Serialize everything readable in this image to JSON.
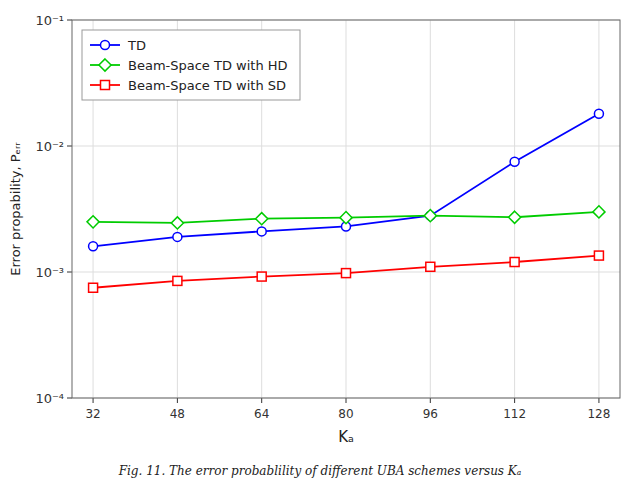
{
  "chart_data": {
    "type": "line",
    "xlabel": "Kₐ",
    "ylabel": "Error propability, Pₑᵣᵣ",
    "annotations": [
      "Fig. 11.  The error probablility of different UBA schemes versus Kₐ"
    ],
    "x": [
      32,
      48,
      64,
      80,
      96,
      112,
      128
    ],
    "series": [
      {
        "name": "TD",
        "color": "#0000FF",
        "marker": "circle",
        "values": [
          0.0016,
          0.0019,
          0.0021,
          0.0023,
          0.0028,
          0.0075,
          0.018
        ]
      },
      {
        "name": "Beam-Space TD with HD",
        "color": "#00CC00",
        "marker": "diamond",
        "values": [
          0.0025,
          0.00245,
          0.00265,
          0.0027,
          0.0028,
          0.00272,
          0.003
        ]
      },
      {
        "name": "Beam-Space TD with SD",
        "color": "#FF0000",
        "marker": "square",
        "values": [
          0.00075,
          0.00085,
          0.00092,
          0.00098,
          0.0011,
          0.0012,
          0.00135
        ]
      }
    ],
    "xlim": [
      28,
      132
    ],
    "xticks": [
      32,
      48,
      64,
      80,
      96,
      112,
      128
    ],
    "ylim": [
      0.0001,
      0.1
    ],
    "yticks": [
      {
        "value": 0.0001,
        "label": "10⁻⁴"
      },
      {
        "value": 0.001,
        "label": "10⁻³"
      },
      {
        "value": 0.01,
        "label": "10⁻²"
      },
      {
        "value": 0.1,
        "label": "10⁻¹"
      }
    ],
    "log": "y",
    "grid": true,
    "legend": "upper left"
  }
}
